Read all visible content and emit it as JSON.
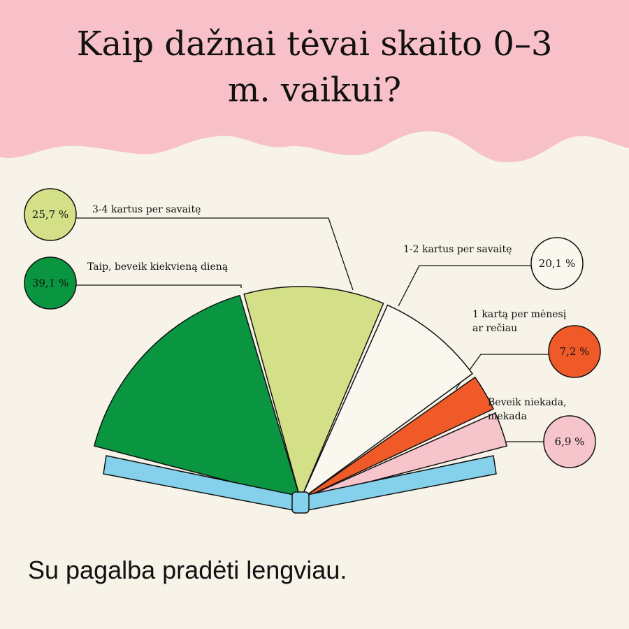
{
  "title": "Kaip dažnai tėvai skaito 0–3 m. vaikui?",
  "footer": "Su pagalba pradėti lengviau.",
  "chart_data": {
    "type": "pie",
    "categories": [
      "Taip, beveik kiekvieną dieną",
      "3-4 kartus per savaitę",
      "1-2 kartus per savaitę",
      "1 kartą per mėnesį ar rečiau",
      "Beveik niekada, niekada"
    ],
    "values": [
      39.1,
      25.7,
      20.1,
      7.2,
      6.9
    ],
    "value_labels": [
      "39,1 %",
      "25,7 %",
      "20,1 %",
      "7,2 %",
      "6,9 %"
    ],
    "colors": [
      "#0a9640",
      "#d3e087",
      "#faf7ee",
      "#f05a28",
      "#f6c4cb"
    ]
  }
}
